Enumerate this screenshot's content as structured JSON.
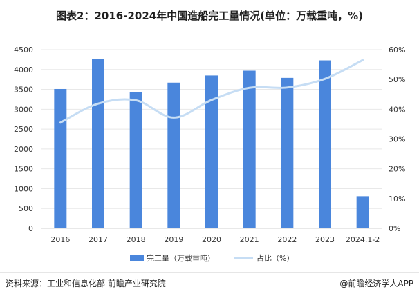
{
  "title": "图表2：2016-2024年中国造船完工量情况(单位：万载重吨，%)",
  "footer": {
    "source": "资料来源：工业和信息化部 前瞻产业研究院",
    "brand": "@前瞻经济学人APP"
  },
  "colors": {
    "bar": "#4a86dc",
    "line": "#c6ddf4",
    "grid": "#e8e8e8"
  },
  "chart_data": {
    "type": "bar",
    "categories": [
      "2016",
      "2017",
      "2018",
      "2019",
      "2020",
      "2021",
      "2022",
      "2023",
      "2024.1-2"
    ],
    "series": [
      {
        "name": "完工量（万载重吨）",
        "type": "bar",
        "axis": "left",
        "values": [
          3510,
          4270,
          3440,
          3670,
          3850,
          3970,
          3790,
          4230,
          810
        ]
      },
      {
        "name": "占比（%）",
        "type": "line",
        "axis": "right",
        "values": [
          35.5,
          41.9,
          43.0,
          37.2,
          43.1,
          47.2,
          47.3,
          50.2,
          56.5
        ]
      }
    ],
    "y_left": {
      "min": 0,
      "max": 4500,
      "step": 500,
      "ticks": [
        "0",
        "500",
        "1000",
        "1500",
        "2000",
        "2500",
        "3000",
        "3500",
        "4000",
        "4500"
      ]
    },
    "y_right": {
      "min": 0,
      "max": 60,
      "step": 10,
      "ticks": [
        "0%",
        "10%",
        "20%",
        "30%",
        "40%",
        "50%",
        "60%"
      ]
    },
    "legend_position": "bottom",
    "grid": true
  }
}
